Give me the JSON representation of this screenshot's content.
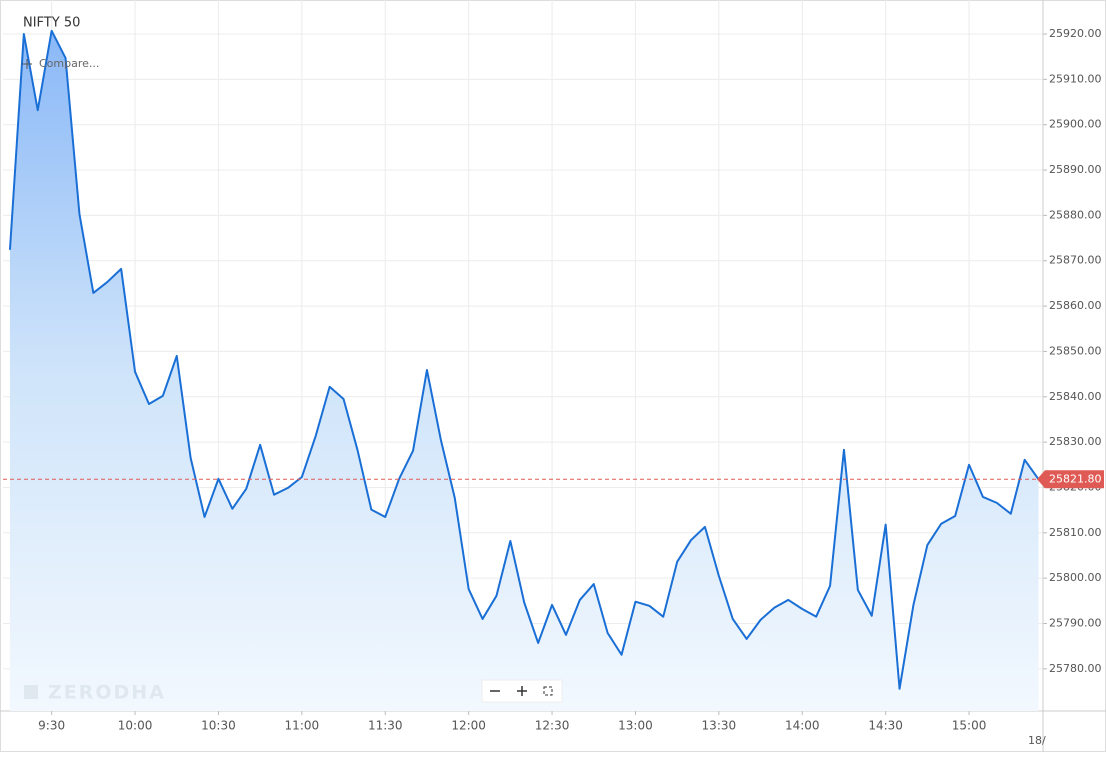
{
  "chart_data": {
    "type": "area",
    "title": "NIFTY 50",
    "color": "#1a6fd6",
    "x": [
      555,
      560,
      565,
      570,
      575,
      580,
      585,
      590,
      595,
      600,
      605,
      610,
      615,
      620,
      625,
      630,
      635,
      640,
      645,
      650,
      655,
      660,
      665,
      670,
      675,
      680,
      685,
      690,
      695,
      700,
      705,
      710,
      715,
      720,
      725,
      730,
      735,
      740,
      745,
      750,
      755,
      760,
      765,
      770,
      775,
      780,
      785,
      790,
      795,
      800,
      805,
      810,
      815,
      820,
      825,
      830,
      835,
      840,
      845,
      850,
      855,
      860,
      865,
      870,
      875,
      880,
      885,
      890,
      895,
      900,
      905,
      910,
      915,
      920,
      925
    ],
    "values": [
      25872.4,
      25920.0,
      25903.2,
      25920.7,
      25914.7,
      25880.3,
      25862.9,
      25865.3,
      25868.2,
      25845.5,
      25838.4,
      25840.2,
      25849.0,
      25826.5,
      25813.5,
      25821.9,
      25815.3,
      25819.7,
      25829.4,
      25818.4,
      25819.9,
      25822.3,
      25831.4,
      25842.2,
      25839.5,
      25828.3,
      25815.1,
      25813.5,
      25821.9,
      25828.1,
      25845.9,
      25830.5,
      25817.7,
      25797.6,
      25791.0,
      25796.1,
      25808.2,
      25794.6,
      25785.7,
      25794.1,
      25787.5,
      25795.2,
      25798.7,
      25787.9,
      25783.1,
      25794.8,
      25793.9,
      25791.5,
      25803.6,
      25808.4,
      25811.3,
      25800.5,
      25791.0,
      25786.6,
      25790.8,
      25793.5,
      25795.2,
      25793.2,
      25791.5,
      25798.3,
      25828.3,
      25797.4,
      25791.7,
      25811.8,
      25775.6,
      25794.1,
      25807.3,
      25812.0,
      25813.7,
      25825.0,
      25817.9,
      25816.6,
      25814.2,
      25826.1,
      25821.8
    ],
    "xlim": [
      552.5,
      926.6
    ],
    "xticks": [
      {
        "value": 570,
        "label": "9:30"
      },
      {
        "value": 600,
        "label": "10:00"
      },
      {
        "value": 630,
        "label": "10:30"
      },
      {
        "value": 660,
        "label": "11:00"
      },
      {
        "value": 690,
        "label": "11:30"
      },
      {
        "value": 720,
        "label": "12:00"
      },
      {
        "value": 750,
        "label": "12:30"
      },
      {
        "value": 780,
        "label": "13:00"
      },
      {
        "value": 810,
        "label": "13:30"
      },
      {
        "value": 840,
        "label": "14:00"
      },
      {
        "value": 870,
        "label": "14:30"
      },
      {
        "value": 900,
        "label": "15:00"
      }
    ],
    "ylim": [
      25770.7,
      25927.5
    ],
    "yticks": [
      {
        "value": 25780,
        "label": "25780.00"
      },
      {
        "value": 25790,
        "label": "25790.00"
      },
      {
        "value": 25800,
        "label": "25800.00"
      },
      {
        "value": 25810,
        "label": "25810.00"
      },
      {
        "value": 25820,
        "label": "25820.00"
      },
      {
        "value": 25830,
        "label": "25830.00"
      },
      {
        "value": 25840,
        "label": "25840.00"
      },
      {
        "value": 25850,
        "label": "25850.00"
      },
      {
        "value": 25860,
        "label": "25860.00"
      },
      {
        "value": 25870,
        "label": "25870.00"
      },
      {
        "value": 25880,
        "label": "25880.00"
      },
      {
        "value": 25890,
        "label": "25890.00"
      },
      {
        "value": 25900,
        "label": "25900.00"
      },
      {
        "value": 25910,
        "label": "25910.00"
      },
      {
        "value": 25920,
        "label": "25920.00"
      }
    ],
    "last_price": {
      "value": 25821.8,
      "label": "25821.80"
    },
    "last_price_color": "#e05a55",
    "grid": true
  },
  "ui": {
    "compare": "Compare...",
    "watermark": "ZERODHA",
    "date_label": "18/"
  }
}
